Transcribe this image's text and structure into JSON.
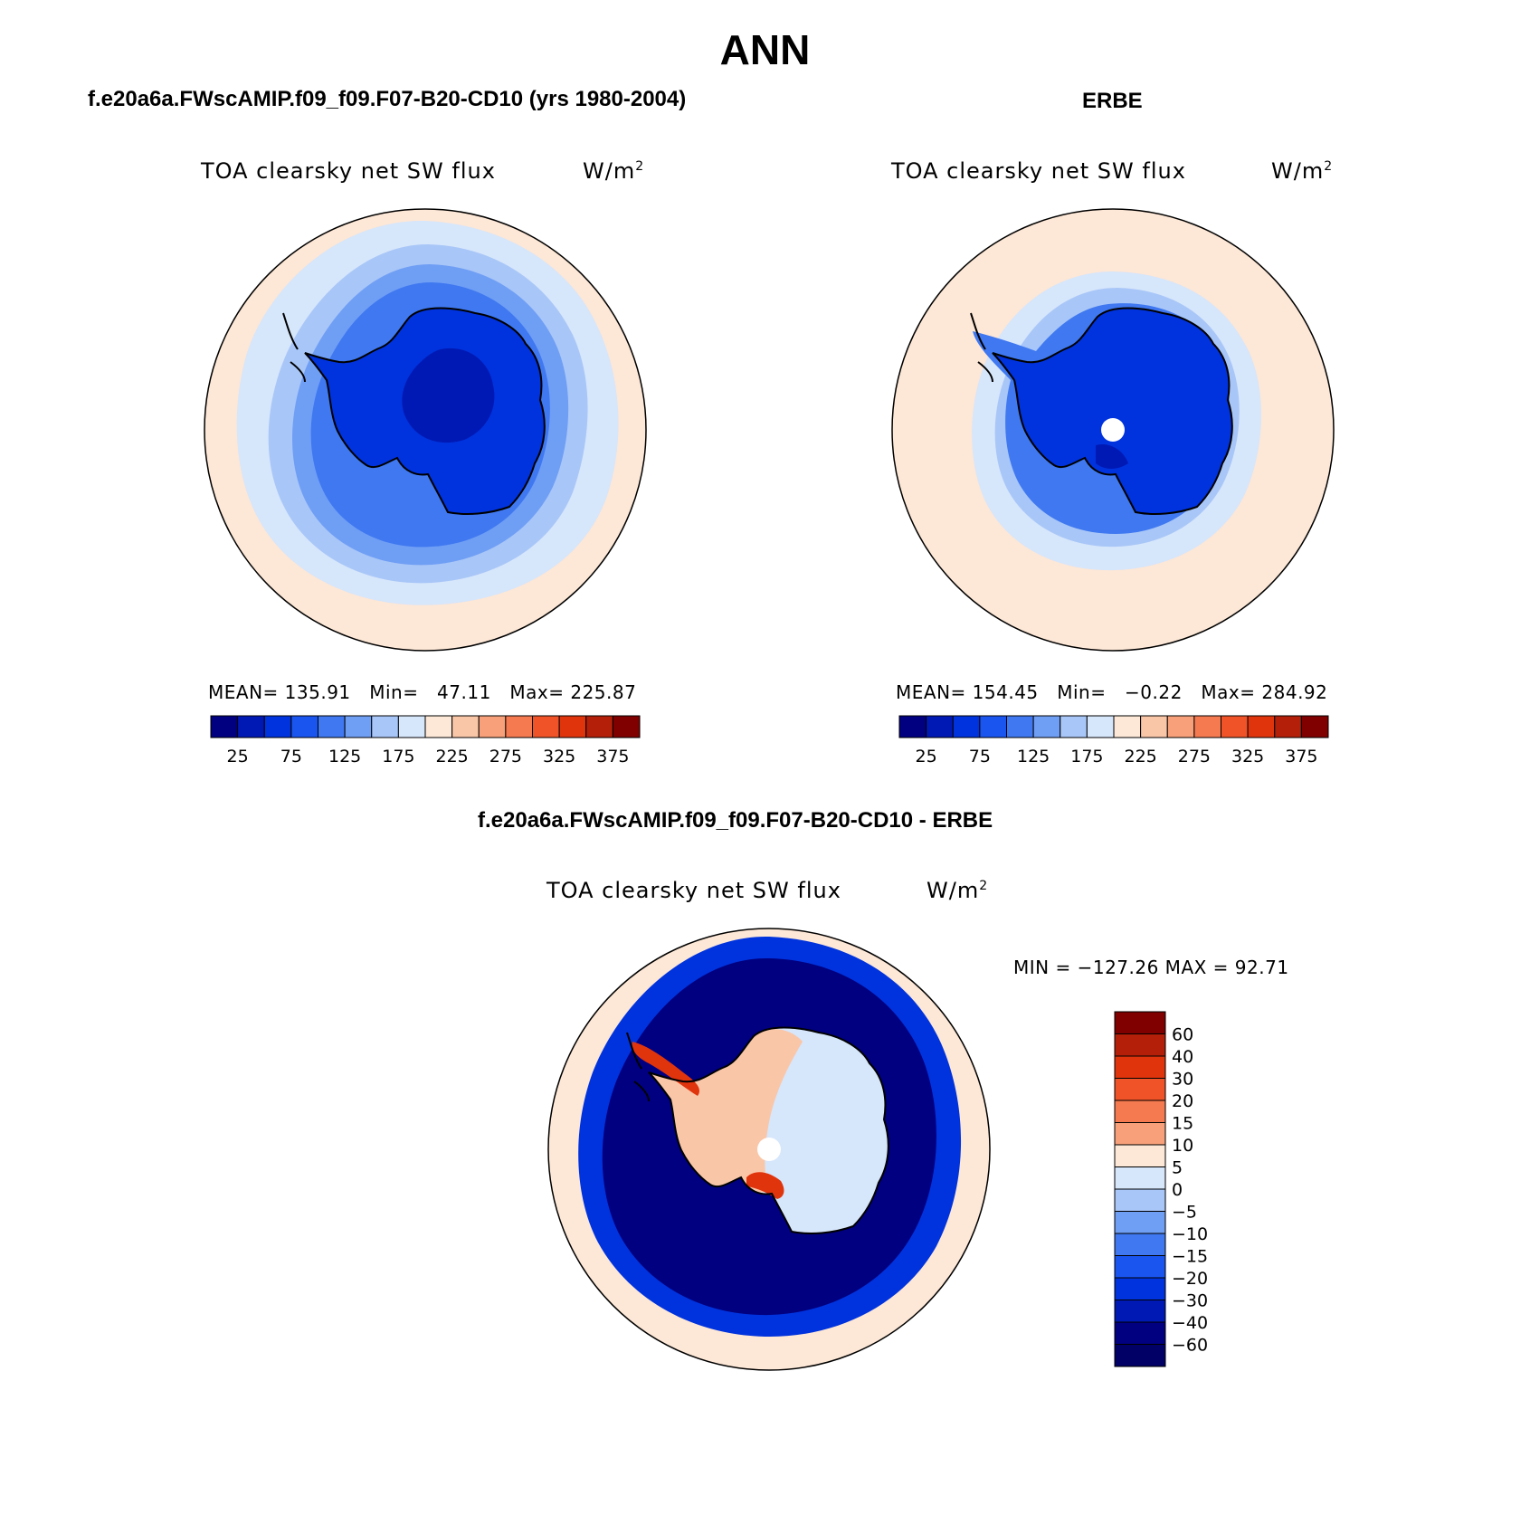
{
  "title": "ANN",
  "panels": {
    "model": {
      "title": "f.e20a6a.FWscAMIP.f09_f09.F07-B20-CD10 (yrs 1980-2004)",
      "variable": "TOA clearsky net SW flux",
      "units": "W/m",
      "units_sup": "2",
      "stats": {
        "mean_label": "MEAN=",
        "mean": "135.91",
        "min_label": "Min=",
        "min": "47.11",
        "max_label": "Max=",
        "max": "225.87"
      }
    },
    "obs": {
      "title": "ERBE",
      "variable": "TOA clearsky net SW flux",
      "units": "W/m",
      "units_sup": "2",
      "stats": {
        "mean_label": "MEAN=",
        "mean": "154.45",
        "min_label": "Min=",
        "min": "−0.22",
        "max_label": "Max=",
        "max": "284.92"
      }
    },
    "diff": {
      "title": "f.e20a6a.FWscAMIP.f09_f09.F07-B20-CD10 - ERBE",
      "variable": "TOA clearsky net SW flux",
      "units": "W/m",
      "units_sup": "2",
      "stats_text": "MIN = −127.26 MAX =  92.71"
    }
  },
  "colorbars": {
    "absolute": {
      "colors": [
        "#000080",
        "#0019b4",
        "#0033dd",
        "#1a55f0",
        "#3f78f0",
        "#6f9ef5",
        "#a8c6f7",
        "#d6e6fb",
        "#fde7d6",
        "#fac6a8",
        "#f8a07a",
        "#f67a50",
        "#f05328",
        "#e0340c",
        "#b31f08",
        "#800000"
      ],
      "tick_labels": [
        "25",
        "75",
        "125",
        "175",
        "225",
        "275",
        "325",
        "375"
      ]
    },
    "difference": {
      "colors": [
        "#800000",
        "#b31f08",
        "#e0340c",
        "#f05328",
        "#f67a50",
        "#f8a07a",
        "#fde7d6",
        "#d6e6fb",
        "#a8c6f7",
        "#6f9ef5",
        "#3f78f0",
        "#1a55f0",
        "#0033dd",
        "#0019b4",
        "#000080",
        "#000066"
      ],
      "tick_labels": [
        "60",
        "40",
        "30",
        "20",
        "15",
        "10",
        "5",
        "0",
        "−5",
        "−10",
        "−15",
        "−20",
        "−30",
        "−40",
        "−60"
      ]
    }
  },
  "map_colors": {
    "ocean_outer": "#fde7d6",
    "ring1": "#d6e6fb",
    "ring2": "#a8c6f7",
    "ring3": "#6f9ef5",
    "ring4": "#3f78f0",
    "land": "#0033dd",
    "core": "#0019b4",
    "diff_ring": "#000080",
    "diff_ring_light": "#0033dd",
    "diff_land": "#fac6a8",
    "diff_pos": "#e0340c",
    "diff_neg_light": "#d6e6fb",
    "pole_hole": "#ffffff"
  }
}
